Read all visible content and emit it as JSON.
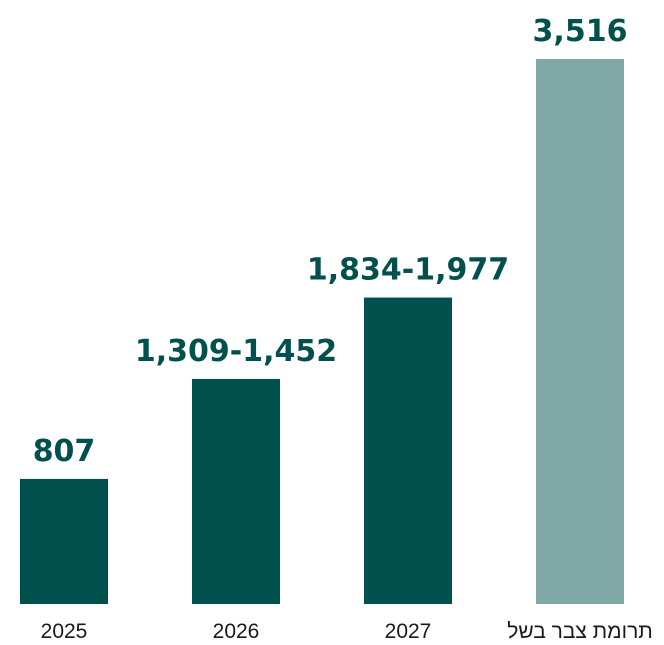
{
  "chart_data": {
    "type": "bar",
    "categories": [
      "2025",
      "2026",
      "2027",
      "תרומת צבר בשל"
    ],
    "values": [
      807,
      1452,
      1977,
      3516
    ],
    "ranges": [
      null,
      [
        1309,
        1452
      ],
      [
        1834,
        1977
      ],
      null
    ],
    "value_labels": [
      "807",
      "1,309-1,452",
      "1,834-1,977",
      "3,516"
    ],
    "title": "",
    "xlabel": "",
    "ylabel": "",
    "ylim": [
      0,
      3516
    ],
    "grid": false,
    "legend": "none",
    "colors": {
      "primary": "#00504e",
      "highlight": "#7fa8a7",
      "label": "#00504e"
    },
    "highlight_index": 3
  }
}
